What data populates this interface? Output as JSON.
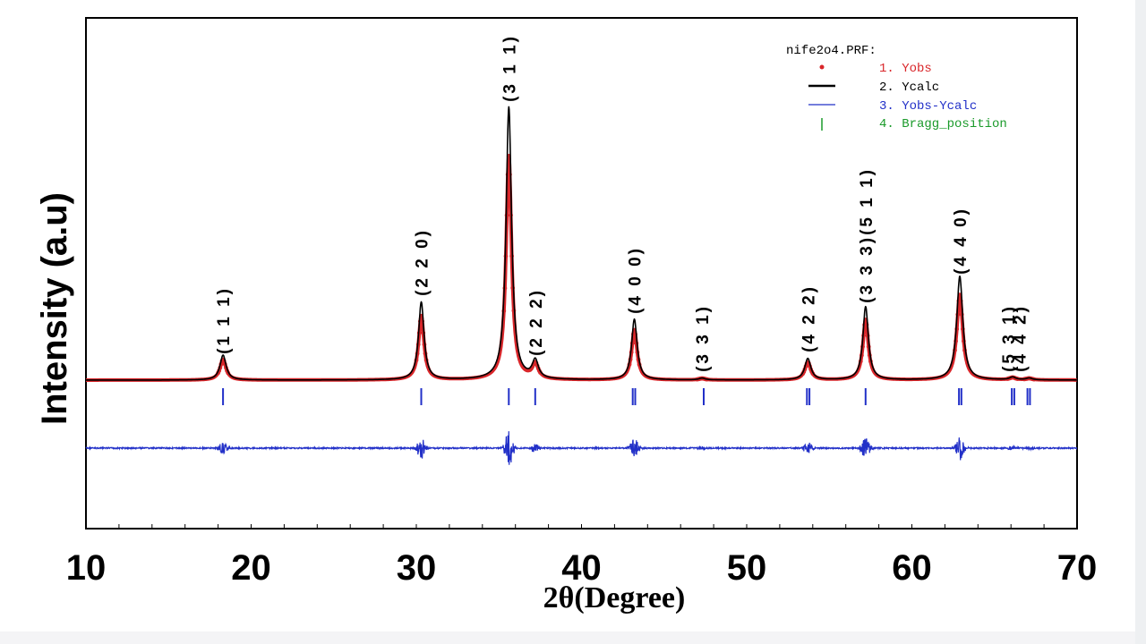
{
  "chart_data": {
    "type": "line",
    "title": "",
    "xlabel": "2θ(Degree)",
    "ylabel": "Intensity (a.u)",
    "xlim": [
      10,
      70
    ],
    "xticks": [
      "10",
      "20",
      "30",
      "40",
      "50",
      "60",
      "70"
    ],
    "xtick_values": [
      10,
      20,
      30,
      40,
      50,
      60,
      70
    ],
    "yticks": [],
    "grid": false,
    "legend": {
      "title": "nife2o4.PRF:",
      "placement": "top-right",
      "entries": [
        {
          "label": "1. Yobs",
          "color": "#d9262a"
        },
        {
          "label": "2. Ycalc",
          "color": "#000000"
        },
        {
          "label": "3. Yobs-Ycalc",
          "color": "#2230c8"
        },
        {
          "label": "4. Bragg_position",
          "color": "#1a9a2a"
        }
      ]
    },
    "baseline_intensity": 0,
    "peaks": [
      {
        "two_theta": 18.3,
        "intensity": 28,
        "width": 0.22
      },
      {
        "two_theta": 30.3,
        "intensity": 87,
        "width": 0.2
      },
      {
        "two_theta": 35.6,
        "intensity": 305,
        "width": 0.2
      },
      {
        "two_theta": 37.2,
        "intensity": 20,
        "width": 0.22
      },
      {
        "two_theta": 43.2,
        "intensity": 68,
        "width": 0.2
      },
      {
        "two_theta": 47.3,
        "intensity": 2,
        "width": 0.22
      },
      {
        "two_theta": 53.7,
        "intensity": 24,
        "width": 0.22
      },
      {
        "two_theta": 57.2,
        "intensity": 82,
        "width": 0.2
      },
      {
        "two_theta": 62.9,
        "intensity": 116,
        "width": 0.22
      },
      {
        "two_theta": 66.1,
        "intensity": 3,
        "width": 0.22
      },
      {
        "two_theta": 67.1,
        "intensity": 2,
        "width": 0.22
      }
    ],
    "bragg_positions": [
      18.3,
      30.3,
      35.6,
      37.2,
      43.1,
      43.25,
      47.4,
      53.65,
      53.8,
      57.2,
      62.85,
      63.0,
      66.05,
      66.2,
      67.0,
      67.15
    ],
    "reflections": [
      {
        "hkl": "(1 1 1)",
        "two_theta": 18.3
      },
      {
        "hkl": "(2 2 0)",
        "two_theta": 30.3
      },
      {
        "hkl": "(3 1 1)",
        "two_theta": 35.6
      },
      {
        "hkl": "(2 2 2)",
        "two_theta": 37.2
      },
      {
        "hkl": "(4 0 0)",
        "two_theta": 43.2
      },
      {
        "hkl": "(3 3 1)",
        "two_theta": 47.3
      },
      {
        "hkl": "(4 2 2)",
        "two_theta": 53.7
      },
      {
        "hkl": "(3 3 3)(5 1 1)",
        "two_theta": 57.2
      },
      {
        "hkl": "(4 4 0)",
        "two_theta": 62.9
      },
      {
        "hkl": "(5 3 1)",
        "two_theta": 66.1
      },
      {
        "hkl": "(4 4 2)",
        "two_theta": 67.1
      }
    ]
  }
}
